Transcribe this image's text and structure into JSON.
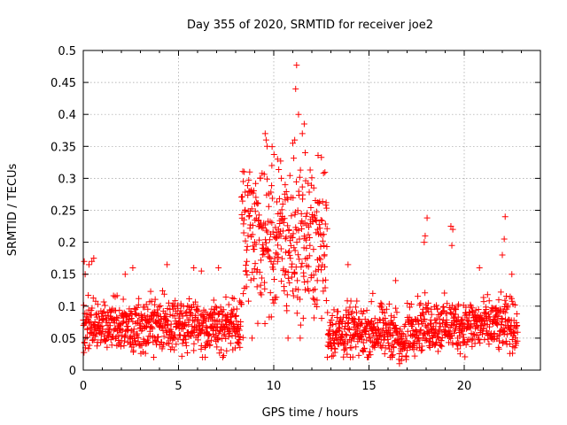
{
  "chart_data": {
    "type": "scatter",
    "title": "Day 355 of 2020, SRMTID for receiver joe2",
    "xlabel": "GPS time / hours",
    "ylabel": "SRMTID / TECUs",
    "xlim": [
      0,
      24
    ],
    "ylim": [
      0,
      0.5
    ],
    "xticks": [
      0,
      5,
      10,
      15,
      20
    ],
    "xtick_labels": [
      "0",
      "5",
      "10",
      "15",
      "20"
    ],
    "yticks": [
      0,
      0.05,
      0.1,
      0.15,
      0.2,
      0.25,
      0.3,
      0.35,
      0.4,
      0.45,
      0.5
    ],
    "ytick_labels": [
      "0",
      "0.05",
      "0.1",
      "0.15",
      "0.2",
      "0.25",
      "0.3",
      "0.35",
      "0.4",
      "0.45",
      "0.5"
    ],
    "grid": true,
    "marker": "+",
    "marker_color": "#ff0000",
    "series_profile": {
      "x_range_hours": [
        0,
        22.8
      ],
      "sample_step_hours": 0.0125,
      "segments": [
        {
          "x_from": 0.0,
          "x_to": 8.3,
          "y_min": 0.02,
          "y_max": 0.13,
          "typical": 0.07
        },
        {
          "x_from": 8.3,
          "x_to": 12.8,
          "y_min": 0.05,
          "y_max": 0.38,
          "typical": 0.2
        },
        {
          "x_from": 12.8,
          "x_to": 16.5,
          "y_min": 0.02,
          "y_max": 0.12,
          "typical": 0.06
        },
        {
          "x_from": 16.5,
          "x_to": 17.0,
          "y_min": 0.0,
          "y_max": 0.08,
          "typical": 0.04
        },
        {
          "x_from": 17.0,
          "x_to": 22.8,
          "y_min": 0.02,
          "y_max": 0.13,
          "typical": 0.07
        }
      ]
    },
    "points": [
      {
        "x": 0.05,
        "y": 0.17
      },
      {
        "x": 0.1,
        "y": 0.15
      },
      {
        "x": 0.3,
        "y": 0.165
      },
      {
        "x": 0.45,
        "y": 0.17
      },
      {
        "x": 0.55,
        "y": 0.175
      },
      {
        "x": 2.2,
        "y": 0.15
      },
      {
        "x": 2.6,
        "y": 0.16
      },
      {
        "x": 4.4,
        "y": 0.165
      },
      {
        "x": 5.8,
        "y": 0.16
      },
      {
        "x": 6.2,
        "y": 0.155
      },
      {
        "x": 7.1,
        "y": 0.16
      },
      {
        "x": 8.4,
        "y": 0.295
      },
      {
        "x": 8.5,
        "y": 0.25
      },
      {
        "x": 8.7,
        "y": 0.28
      },
      {
        "x": 9.0,
        "y": 0.26
      },
      {
        "x": 9.3,
        "y": 0.3
      },
      {
        "x": 9.55,
        "y": 0.37
      },
      {
        "x": 9.6,
        "y": 0.36
      },
      {
        "x": 9.65,
        "y": 0.35
      },
      {
        "x": 9.9,
        "y": 0.32
      },
      {
        "x": 10.2,
        "y": 0.33
      },
      {
        "x": 10.4,
        "y": 0.3
      },
      {
        "x": 10.6,
        "y": 0.29
      },
      {
        "x": 10.75,
        "y": 0.05
      },
      {
        "x": 11.0,
        "y": 0.355
      },
      {
        "x": 11.1,
        "y": 0.36
      },
      {
        "x": 11.15,
        "y": 0.44
      },
      {
        "x": 11.2,
        "y": 0.477
      },
      {
        "x": 11.3,
        "y": 0.4
      },
      {
        "x": 11.5,
        "y": 0.37
      },
      {
        "x": 11.6,
        "y": 0.385
      },
      {
        "x": 11.65,
        "y": 0.34
      },
      {
        "x": 12.1,
        "y": 0.285
      },
      {
        "x": 12.3,
        "y": 0.22
      },
      {
        "x": 13.9,
        "y": 0.165
      },
      {
        "x": 15.2,
        "y": 0.12
      },
      {
        "x": 16.4,
        "y": 0.14
      },
      {
        "x": 16.6,
        "y": 0.01
      },
      {
        "x": 16.7,
        "y": 0.015
      },
      {
        "x": 17.9,
        "y": 0.2
      },
      {
        "x": 17.95,
        "y": 0.21
      },
      {
        "x": 18.05,
        "y": 0.238
      },
      {
        "x": 19.3,
        "y": 0.225
      },
      {
        "x": 19.4,
        "y": 0.22
      },
      {
        "x": 19.35,
        "y": 0.195
      },
      {
        "x": 20.8,
        "y": 0.16
      },
      {
        "x": 22.0,
        "y": 0.18
      },
      {
        "x": 22.1,
        "y": 0.205
      },
      {
        "x": 22.15,
        "y": 0.24
      },
      {
        "x": 22.5,
        "y": 0.15
      }
    ]
  }
}
